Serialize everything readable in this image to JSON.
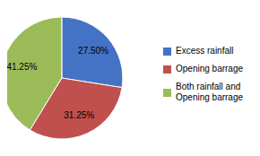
{
  "chart_data": {
    "type": "pie",
    "categories": [
      "Excess rainfall",
      "Opening barrage",
      "Both rainfall and\nOpening barrage"
    ],
    "values": [
      27.5,
      31.25,
      41.25
    ],
    "value_labels": [
      "27.50%",
      "31.25%",
      "41.25%"
    ],
    "colors": [
      "#4472c4",
      "#c0504d",
      "#9bbb59"
    ],
    "data_labels": true,
    "legend": "right"
  }
}
